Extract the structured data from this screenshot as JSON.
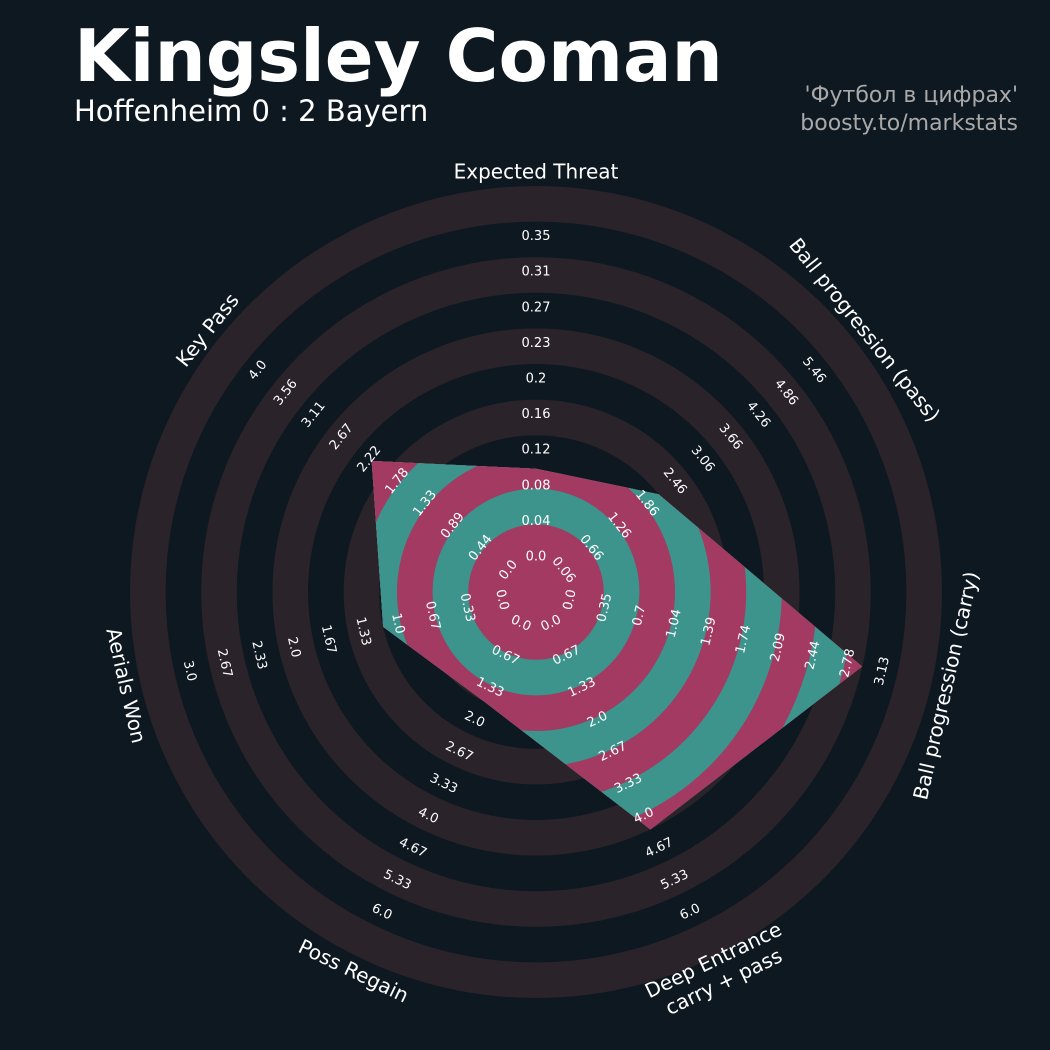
{
  "header": {
    "title": "Kingsley Coman",
    "subtitle": "Hoffenheim 0 : 2 Bayern",
    "credit_line1": "'Футбол в цифрах'",
    "credit_line2": "boosty.to/markstats"
  },
  "colors": {
    "background": "#0e1821",
    "ring": "#2a2329",
    "fill_pink": "#a33a62",
    "fill_teal": "#3c948c",
    "text": "#ffffff"
  },
  "chart_data": {
    "type": "radar",
    "title": "Kingsley Coman",
    "subtitle": "Hoffenheim 0 : 2 Bayern",
    "axes": [
      {
        "name": "Expected Threat",
        "label_lines": [
          "Expected Threat"
        ],
        "range": [
          0,
          0.35
        ],
        "ticks": [
          "0.0",
          "0.04",
          "0.08",
          "0.12",
          "0.16",
          "0.2",
          "0.23",
          "0.27",
          "0.31",
          "0.35"
        ],
        "value": 0.08
      },
      {
        "name": "Ball progression (pass)",
        "label_lines": [
          "Ball progression (pass)"
        ],
        "range": [
          0.06,
          5.46
        ],
        "ticks": [
          "0.06",
          "0.66",
          "1.26",
          "1.86",
          "2.46",
          "3.06",
          "3.66",
          "4.26",
          "4.86",
          "5.46"
        ],
        "value": 1.86
      },
      {
        "name": "Ball progression (carry)",
        "label_lines": [
          "Ball progression (carry)"
        ],
        "range": [
          0,
          3.13
        ],
        "ticks": [
          "0.0",
          "0.35",
          "0.7",
          "1.04",
          "1.39",
          "1.74",
          "2.09",
          "2.44",
          "2.78",
          "3.13"
        ],
        "value": 2.78
      },
      {
        "name": "Deep Entrance carry + pass",
        "label_lines": [
          "Deep Entrance",
          "carry + pass"
        ],
        "range": [
          0,
          6
        ],
        "ticks": [
          "0.0",
          "0.67",
          "1.33",
          "2.0",
          "2.67",
          "3.33",
          "4.0",
          "4.67",
          "5.33",
          "6.0"
        ],
        "value": 4.0
      },
      {
        "name": "Poss Regain",
        "label_lines": [
          "Poss Regain"
        ],
        "range": [
          0,
          6
        ],
        "ticks": [
          "0.0",
          "0.67",
          "1.33",
          "2.0",
          "2.67",
          "3.33",
          "4.0",
          "4.67",
          "5.33",
          "6.0"
        ],
        "value": 1.33
      },
      {
        "name": "Aerials Won",
        "label_lines": [
          "Aerials Won"
        ],
        "range": [
          0,
          3
        ],
        "ticks": [
          "0.0",
          "0.33",
          "0.67",
          "1.0",
          "1.33",
          "1.67",
          "2.0",
          "2.33",
          "2.67",
          "3.0"
        ],
        "value": 1.0
      },
      {
        "name": "Key Pass",
        "label_lines": [
          "Key Pass"
        ],
        "range": [
          0,
          4
        ],
        "ticks": [
          "0.0",
          "0.44",
          "0.89",
          "1.33",
          "1.78",
          "2.22",
          "2.67",
          "3.11",
          "3.56",
          "4.0"
        ],
        "value": 2.0
      }
    ]
  }
}
